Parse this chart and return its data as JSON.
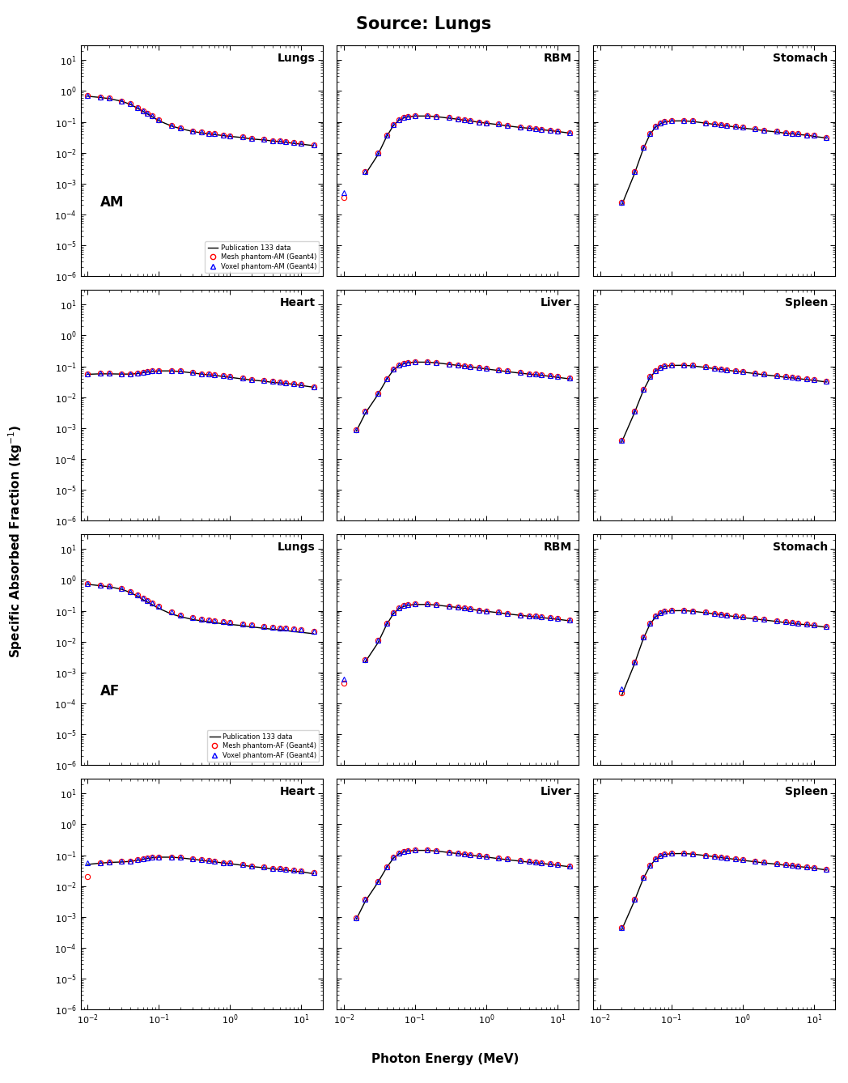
{
  "title": "Source: Lungs",
  "xlabel": "Photon Energy (MeV)",
  "ylabel": "Specific Absorbed Fraction (kg$^{-1}$)",
  "ylim": [
    1e-06,
    30
  ],
  "xlim": [
    0.008,
    20
  ],
  "legend_AM": [
    "Publication 133 data",
    "Mesh phantom-AM (Geant4)",
    "Voxel phantom-AM (Geant4)"
  ],
  "legend_AF": [
    "Publication 133 data",
    "Mesh phantom-AF (Geant4)",
    "Voxel phantom-AF (Geant4)"
  ],
  "line_color": "black",
  "mesh_color": "#FF0000",
  "voxel_color": "#0000FF",
  "energies": [
    0.01,
    0.015,
    0.02,
    0.03,
    0.04,
    0.05,
    0.06,
    0.07,
    0.08,
    0.1,
    0.15,
    0.2,
    0.3,
    0.4,
    0.5,
    0.6,
    0.8,
    1.0,
    1.5,
    2.0,
    3.0,
    4.0,
    5.0,
    6.0,
    8.0,
    10.0,
    15.0
  ],
  "data": {
    "AM": {
      "Lungs": {
        "pub": [
          0.68,
          0.62,
          0.57,
          0.47,
          0.37,
          0.28,
          0.22,
          0.18,
          0.15,
          0.11,
          0.074,
          0.061,
          0.049,
          0.044,
          0.041,
          0.039,
          0.036,
          0.034,
          0.031,
          0.028,
          0.026,
          0.024,
          0.023,
          0.022,
          0.02,
          0.019,
          0.017
        ],
        "mesh": [
          0.7,
          0.63,
          0.58,
          0.48,
          0.38,
          0.29,
          0.23,
          0.19,
          0.16,
          0.12,
          0.078,
          0.064,
          0.051,
          0.046,
          0.043,
          0.041,
          0.037,
          0.035,
          0.032,
          0.029,
          0.027,
          0.025,
          0.024,
          0.023,
          0.021,
          0.02,
          0.018
        ],
        "voxel": [
          0.7,
          0.63,
          0.58,
          0.48,
          0.38,
          0.29,
          0.23,
          0.19,
          0.16,
          0.12,
          0.078,
          0.064,
          0.051,
          0.046,
          0.043,
          0.041,
          0.037,
          0.035,
          0.032,
          0.029,
          0.027,
          0.025,
          0.024,
          0.023,
          0.021,
          0.02,
          0.018
        ]
      },
      "RBM": {
        "pub": [
          null,
          null,
          0.002,
          0.0085,
          0.034,
          0.078,
          0.115,
          0.135,
          0.145,
          0.155,
          0.155,
          0.148,
          0.132,
          0.122,
          0.113,
          0.107,
          0.097,
          0.091,
          0.081,
          0.074,
          0.066,
          0.062,
          0.059,
          0.056,
          0.052,
          0.049,
          0.043
        ],
        "mesh": [
          0.00035,
          null,
          0.0024,
          0.01,
          0.038,
          0.082,
          0.12,
          0.14,
          0.15,
          0.16,
          0.16,
          0.152,
          0.136,
          0.126,
          0.117,
          0.11,
          0.1,
          0.094,
          0.084,
          0.077,
          0.069,
          0.064,
          0.061,
          0.058,
          0.054,
          0.051,
          0.045
        ],
        "voxel": [
          0.0005,
          null,
          0.0024,
          0.01,
          0.038,
          0.082,
          0.12,
          0.14,
          0.15,
          0.16,
          0.16,
          0.152,
          0.136,
          0.126,
          0.117,
          0.11,
          0.1,
          0.094,
          0.084,
          0.077,
          0.069,
          0.064,
          0.061,
          0.058,
          0.054,
          0.051,
          0.045
        ]
      },
      "Stomach": {
        "pub": [
          null,
          null,
          0.0002,
          0.002,
          0.013,
          0.04,
          0.068,
          0.086,
          0.099,
          0.107,
          0.108,
          0.103,
          0.091,
          0.083,
          0.078,
          0.074,
          0.068,
          0.063,
          0.057,
          0.052,
          0.047,
          0.043,
          0.041,
          0.039,
          0.037,
          0.034,
          0.03
        ],
        "mesh": [
          null,
          null,
          0.00025,
          0.0025,
          0.015,
          0.043,
          0.072,
          0.09,
          0.103,
          0.111,
          0.112,
          0.107,
          0.094,
          0.086,
          0.081,
          0.077,
          0.07,
          0.066,
          0.059,
          0.054,
          0.049,
          0.045,
          0.043,
          0.041,
          0.038,
          0.036,
          0.031
        ],
        "voxel": [
          null,
          null,
          0.00025,
          0.0025,
          0.015,
          0.043,
          0.072,
          0.09,
          0.103,
          0.111,
          0.112,
          0.107,
          0.094,
          0.086,
          0.081,
          0.077,
          0.07,
          0.066,
          0.059,
          0.054,
          0.049,
          0.045,
          0.043,
          0.041,
          0.038,
          0.036,
          0.031
        ]
      },
      "Heart": {
        "pub": [
          0.055,
          0.057,
          0.057,
          0.056,
          0.056,
          0.058,
          0.062,
          0.065,
          0.068,
          0.071,
          0.071,
          0.068,
          0.061,
          0.056,
          0.053,
          0.051,
          0.047,
          0.044,
          0.039,
          0.036,
          0.033,
          0.03,
          0.029,
          0.028,
          0.026,
          0.024,
          0.021
        ],
        "mesh": [
          0.057,
          0.059,
          0.059,
          0.058,
          0.058,
          0.06,
          0.064,
          0.067,
          0.07,
          0.073,
          0.073,
          0.07,
          0.063,
          0.058,
          0.055,
          0.053,
          0.049,
          0.046,
          0.041,
          0.038,
          0.034,
          0.032,
          0.03,
          0.029,
          0.027,
          0.025,
          0.022
        ],
        "voxel": [
          0.057,
          0.059,
          0.059,
          0.058,
          0.058,
          0.06,
          0.064,
          0.067,
          0.07,
          0.073,
          0.073,
          0.07,
          0.063,
          0.058,
          0.055,
          0.053,
          0.049,
          0.046,
          0.041,
          0.038,
          0.034,
          0.032,
          0.03,
          0.029,
          0.027,
          0.025,
          0.022
        ]
      },
      "Liver": {
        "pub": [
          null,
          0.0008,
          0.003,
          0.012,
          0.038,
          0.077,
          0.106,
          0.121,
          0.131,
          0.137,
          0.136,
          0.13,
          0.116,
          0.107,
          0.101,
          0.095,
          0.088,
          0.082,
          0.073,
          0.067,
          0.06,
          0.056,
          0.053,
          0.051,
          0.047,
          0.044,
          0.039
        ],
        "mesh": [
          null,
          0.0009,
          0.0035,
          0.013,
          0.04,
          0.08,
          0.11,
          0.125,
          0.135,
          0.141,
          0.14,
          0.134,
          0.12,
          0.111,
          0.104,
          0.099,
          0.091,
          0.085,
          0.076,
          0.07,
          0.063,
          0.058,
          0.056,
          0.053,
          0.049,
          0.046,
          0.041
        ],
        "voxel": [
          null,
          0.0009,
          0.0035,
          0.013,
          0.04,
          0.08,
          0.11,
          0.125,
          0.135,
          0.141,
          0.14,
          0.134,
          0.12,
          0.111,
          0.104,
          0.099,
          0.091,
          0.085,
          0.076,
          0.07,
          0.063,
          0.058,
          0.056,
          0.053,
          0.049,
          0.046,
          0.041
        ]
      },
      "Spleen": {
        "pub": [
          null,
          null,
          0.00035,
          0.003,
          0.016,
          0.043,
          0.071,
          0.088,
          0.1,
          0.107,
          0.108,
          0.103,
          0.092,
          0.084,
          0.079,
          0.075,
          0.069,
          0.065,
          0.058,
          0.053,
          0.048,
          0.044,
          0.042,
          0.04,
          0.037,
          0.035,
          0.031
        ],
        "mesh": [
          null,
          null,
          0.0004,
          0.0035,
          0.018,
          0.046,
          0.074,
          0.092,
          0.104,
          0.111,
          0.112,
          0.107,
          0.095,
          0.087,
          0.082,
          0.078,
          0.072,
          0.067,
          0.06,
          0.055,
          0.05,
          0.046,
          0.044,
          0.042,
          0.039,
          0.037,
          0.032
        ],
        "voxel": [
          null,
          null,
          0.0004,
          0.0035,
          0.018,
          0.046,
          0.074,
          0.092,
          0.104,
          0.111,
          0.112,
          0.107,
          0.095,
          0.087,
          0.082,
          0.078,
          0.072,
          0.067,
          0.06,
          0.055,
          0.05,
          0.046,
          0.044,
          0.042,
          0.039,
          0.037,
          0.032
        ]
      }
    },
    "AF": {
      "Lungs": {
        "pub": [
          0.72,
          0.65,
          0.6,
          0.5,
          0.39,
          0.3,
          0.23,
          0.19,
          0.16,
          0.12,
          0.079,
          0.065,
          0.052,
          0.047,
          0.044,
          0.041,
          0.038,
          0.036,
          0.033,
          0.03,
          0.027,
          0.025,
          0.024,
          0.023,
          0.021,
          0.02,
          0.018
        ],
        "mesh": [
          0.74,
          0.67,
          0.62,
          0.52,
          0.41,
          0.32,
          0.25,
          0.21,
          0.18,
          0.14,
          0.09,
          0.074,
          0.059,
          0.053,
          0.05,
          0.047,
          0.043,
          0.041,
          0.037,
          0.034,
          0.031,
          0.029,
          0.028,
          0.027,
          0.025,
          0.024,
          0.021
        ],
        "voxel": [
          0.74,
          0.67,
          0.62,
          0.52,
          0.41,
          0.32,
          0.25,
          0.21,
          0.18,
          0.14,
          0.09,
          0.074,
          0.059,
          0.053,
          0.05,
          0.047,
          0.043,
          0.041,
          0.037,
          0.034,
          0.031,
          0.029,
          0.028,
          0.027,
          0.025,
          0.024,
          0.021
        ]
      },
      "RBM": {
        "pub": [
          null,
          null,
          0.0022,
          0.009,
          0.036,
          0.082,
          0.119,
          0.139,
          0.15,
          0.16,
          0.16,
          0.153,
          0.137,
          0.127,
          0.118,
          0.112,
          0.102,
          0.096,
          0.086,
          0.079,
          0.071,
          0.066,
          0.063,
          0.06,
          0.056,
          0.053,
          0.047
        ],
        "mesh": [
          0.00045,
          null,
          0.0026,
          0.011,
          0.04,
          0.086,
          0.124,
          0.144,
          0.155,
          0.165,
          0.165,
          0.158,
          0.141,
          0.131,
          0.122,
          0.116,
          0.106,
          0.1,
          0.089,
          0.082,
          0.074,
          0.069,
          0.066,
          0.063,
          0.059,
          0.056,
          0.05
        ],
        "voxel": [
          0.0006,
          null,
          0.0026,
          0.011,
          0.04,
          0.086,
          0.124,
          0.144,
          0.155,
          0.165,
          0.165,
          0.158,
          0.141,
          0.131,
          0.122,
          0.116,
          0.106,
          0.1,
          0.089,
          0.082,
          0.074,
          0.069,
          0.066,
          0.063,
          0.059,
          0.056,
          0.05
        ]
      },
      "Stomach": {
        "pub": [
          null,
          null,
          0.00018,
          0.0018,
          0.012,
          0.037,
          0.063,
          0.08,
          0.092,
          0.1,
          0.101,
          0.096,
          0.086,
          0.079,
          0.074,
          0.07,
          0.064,
          0.06,
          0.054,
          0.05,
          0.045,
          0.041,
          0.039,
          0.037,
          0.035,
          0.033,
          0.029
        ],
        "mesh": [
          null,
          null,
          0.00022,
          0.0022,
          0.014,
          0.04,
          0.067,
          0.084,
          0.096,
          0.104,
          0.105,
          0.1,
          0.089,
          0.082,
          0.077,
          0.073,
          0.067,
          0.063,
          0.057,
          0.052,
          0.047,
          0.043,
          0.041,
          0.039,
          0.037,
          0.035,
          0.031
        ],
        "voxel": [
          null,
          null,
          0.0003,
          0.0022,
          0.014,
          0.04,
          0.067,
          0.084,
          0.096,
          0.104,
          0.105,
          0.1,
          0.089,
          0.082,
          0.077,
          0.073,
          0.067,
          0.063,
          0.057,
          0.052,
          0.047,
          0.043,
          0.041,
          0.039,
          0.037,
          0.035,
          0.031
        ]
      },
      "Heart": {
        "pub": [
          0.05,
          0.055,
          0.058,
          0.06,
          0.063,
          0.068,
          0.073,
          0.078,
          0.082,
          0.086,
          0.086,
          0.082,
          0.074,
          0.068,
          0.064,
          0.061,
          0.056,
          0.053,
          0.047,
          0.043,
          0.039,
          0.036,
          0.034,
          0.033,
          0.03,
          0.029,
          0.025
        ],
        "mesh": [
          0.02,
          0.057,
          0.06,
          0.062,
          0.065,
          0.07,
          0.075,
          0.08,
          0.084,
          0.088,
          0.088,
          0.084,
          0.076,
          0.07,
          0.066,
          0.063,
          0.058,
          0.055,
          0.049,
          0.045,
          0.041,
          0.038,
          0.036,
          0.035,
          0.032,
          0.031,
          0.027
        ],
        "voxel": [
          0.057,
          0.057,
          0.06,
          0.062,
          0.065,
          0.07,
          0.075,
          0.08,
          0.084,
          0.088,
          0.088,
          0.084,
          0.076,
          0.07,
          0.066,
          0.063,
          0.058,
          0.055,
          0.049,
          0.045,
          0.041,
          0.038,
          0.036,
          0.035,
          0.032,
          0.031,
          0.027
        ]
      },
      "Liver": {
        "pub": [
          null,
          0.00085,
          0.0032,
          0.013,
          0.04,
          0.081,
          0.111,
          0.127,
          0.137,
          0.143,
          0.143,
          0.136,
          0.122,
          0.112,
          0.106,
          0.1,
          0.092,
          0.087,
          0.077,
          0.071,
          0.064,
          0.059,
          0.056,
          0.054,
          0.05,
          0.047,
          0.042
        ],
        "mesh": [
          null,
          0.00095,
          0.0037,
          0.014,
          0.042,
          0.084,
          0.115,
          0.131,
          0.141,
          0.148,
          0.147,
          0.141,
          0.126,
          0.116,
          0.11,
          0.104,
          0.096,
          0.09,
          0.08,
          0.074,
          0.067,
          0.062,
          0.059,
          0.056,
          0.053,
          0.05,
          0.044
        ],
        "voxel": [
          null,
          0.00095,
          0.0037,
          0.014,
          0.042,
          0.084,
          0.115,
          0.131,
          0.141,
          0.148,
          0.147,
          0.141,
          0.126,
          0.116,
          0.11,
          0.104,
          0.096,
          0.09,
          0.08,
          0.074,
          0.067,
          0.062,
          0.059,
          0.056,
          0.053,
          0.05,
          0.044
        ]
      },
      "Spleen": {
        "pub": [
          null,
          null,
          0.00038,
          0.0032,
          0.017,
          0.045,
          0.074,
          0.092,
          0.105,
          0.112,
          0.113,
          0.108,
          0.097,
          0.089,
          0.083,
          0.079,
          0.073,
          0.068,
          0.061,
          0.056,
          0.051,
          0.047,
          0.045,
          0.043,
          0.04,
          0.038,
          0.033
        ],
        "mesh": [
          null,
          null,
          0.00045,
          0.0037,
          0.019,
          0.048,
          0.077,
          0.096,
          0.109,
          0.116,
          0.117,
          0.112,
          0.1,
          0.092,
          0.087,
          0.082,
          0.076,
          0.071,
          0.064,
          0.059,
          0.053,
          0.049,
          0.047,
          0.045,
          0.042,
          0.04,
          0.035
        ],
        "voxel": [
          null,
          null,
          0.00045,
          0.0037,
          0.019,
          0.048,
          0.077,
          0.096,
          0.109,
          0.116,
          0.117,
          0.112,
          0.1,
          0.092,
          0.087,
          0.082,
          0.076,
          0.071,
          0.064,
          0.059,
          0.053,
          0.049,
          0.047,
          0.045,
          0.042,
          0.04,
          0.035
        ]
      }
    }
  }
}
